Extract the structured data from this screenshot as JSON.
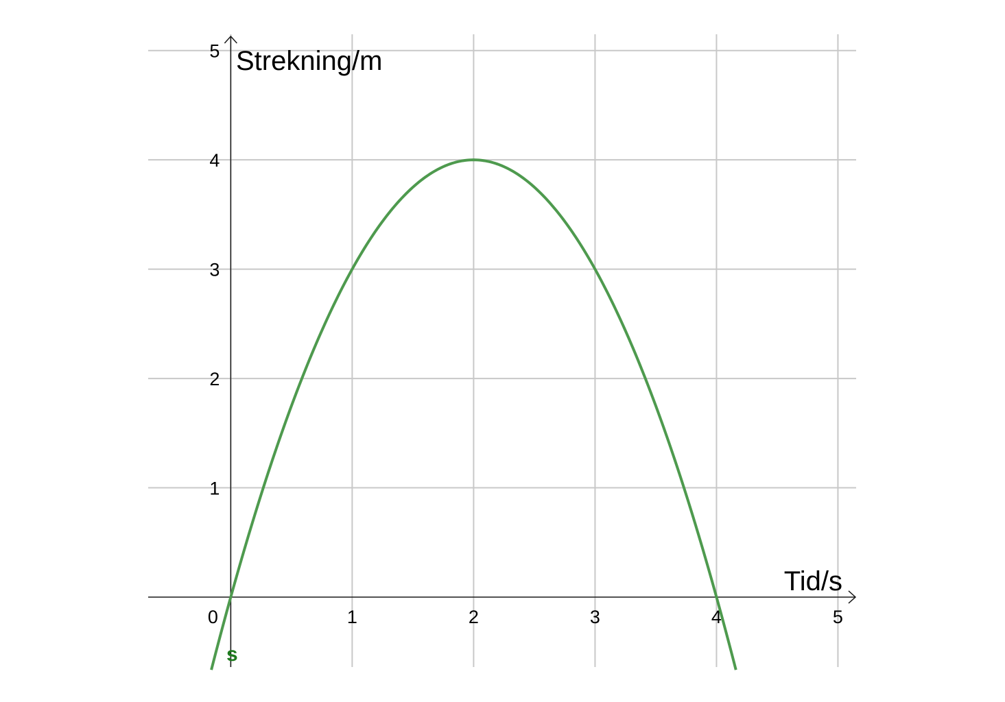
{
  "chart_data": {
    "type": "line",
    "xlabel": "Tid/s",
    "ylabel": "Strekning/m",
    "xlim": [
      -0.68,
      5.15
    ],
    "ylim": [
      -0.64,
      5.13
    ],
    "x_ticks": [
      0,
      1,
      2,
      3,
      4,
      5
    ],
    "y_ticks": [
      1,
      2,
      3,
      4,
      5
    ],
    "x_tick_labels": [
      "0",
      "1",
      "2",
      "3",
      "4",
      "5"
    ],
    "y_tick_labels": [
      "1",
      "2",
      "3",
      "4",
      "5"
    ],
    "grid": true,
    "series": [
      {
        "name": "s",
        "color": "#4e9a4e",
        "label_color": "#1e7a1e",
        "function": "s(t) = 4t - t^2",
        "x": [
          -0.16,
          0,
          0.5,
          1,
          1.5,
          2,
          2.5,
          3,
          3.5,
          4,
          4.16
        ],
        "y": [
          -0.67,
          0,
          1.75,
          3,
          3.75,
          4,
          3.75,
          3,
          1.75,
          0,
          -0.67
        ]
      }
    ]
  }
}
